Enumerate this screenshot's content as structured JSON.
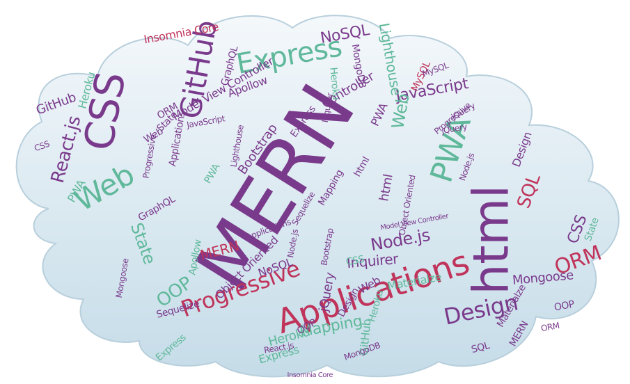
{
  "cloud": {
    "fill_top": "#f4f8fb",
    "fill_bottom": "#c5dce8",
    "outline": "#b8cfdc"
  },
  "palette": {
    "purple": "#7a3a8c",
    "teal": "#5fb89a",
    "crimson": "#c0335a",
    "gray": "#7d8a95"
  },
  "words": [
    {
      "text": "MERN",
      "color": "purple"
    },
    {
      "text": "html",
      "color": "purple"
    },
    {
      "text": "Applications",
      "color": "crimson"
    },
    {
      "text": "CSS",
      "color": "purple"
    },
    {
      "text": "GitHub",
      "color": "purple"
    },
    {
      "text": "Express",
      "color": "teal"
    },
    {
      "text": "Web",
      "color": "teal"
    },
    {
      "text": "PWA",
      "color": "teal"
    },
    {
      "text": "React.js",
      "color": "purple"
    },
    {
      "text": "Progressive",
      "color": "crimson"
    },
    {
      "text": "Design",
      "color": "purple"
    },
    {
      "text": "ORM",
      "color": "crimson"
    },
    {
      "text": "SQL",
      "color": "crimson"
    },
    {
      "text": "Node.js",
      "color": "purple"
    },
    {
      "text": "JavaScript",
      "color": "purple"
    },
    {
      "text": "NoSQL",
      "color": "purple"
    },
    {
      "text": "Lighthouse",
      "color": "teal"
    },
    {
      "text": "Model View Controller",
      "color": "purple"
    },
    {
      "text": "Bootstrap",
      "color": "purple"
    },
    {
      "text": "OOP",
      "color": "teal"
    },
    {
      "text": "State",
      "color": "teal"
    },
    {
      "text": "Heroku",
      "color": "teal"
    },
    {
      "text": "Apollow",
      "color": "purple"
    },
    {
      "text": "GraphQL",
      "color": "purple"
    },
    {
      "text": "Mapping",
      "color": "teal"
    },
    {
      "text": "MERN",
      "color": "crimson"
    },
    {
      "text": "jQuery",
      "color": "purple"
    },
    {
      "text": "Inquirer",
      "color": "purple"
    },
    {
      "text": "Object Oriented",
      "color": "purple"
    },
    {
      "text": "Materialze",
      "color": "teal"
    },
    {
      "text": "Mongoose",
      "color": "purple"
    },
    {
      "text": "Sequelize",
      "color": "purple"
    },
    {
      "text": "MongoDB",
      "color": "purple"
    },
    {
      "text": "Insomnia Core",
      "color": "crimson"
    },
    {
      "text": "MySQL",
      "color": "crimson"
    },
    {
      "text": "Controller",
      "color": "purple"
    },
    {
      "text": "Heroku",
      "color": "teal"
    },
    {
      "text": "GitHub",
      "color": "purple"
    },
    {
      "text": "CSS",
      "color": "purple"
    },
    {
      "text": "Web",
      "color": "teal"
    },
    {
      "text": "Design",
      "color": "purple"
    },
    {
      "text": "html",
      "color": "purple"
    },
    {
      "text": "Express",
      "color": "teal"
    },
    {
      "text": "PWA",
      "color": "teal"
    },
    {
      "text": "Applications",
      "color": "purple"
    },
    {
      "text": "State",
      "color": "purple"
    },
    {
      "text": "Progressive",
      "color": "purple"
    },
    {
      "text": "OOP",
      "color": "purple"
    },
    {
      "text": "React.js",
      "color": "purple"
    },
    {
      "text": "Heroku",
      "color": "teal"
    },
    {
      "text": "CSS",
      "color": "teal"
    },
    {
      "text": "State",
      "color": "teal"
    },
    {
      "text": "ORM",
      "color": "purple"
    },
    {
      "text": "NoSQL",
      "color": "purple"
    },
    {
      "text": "Mapping",
      "color": "purple"
    },
    {
      "text": "Express",
      "color": "teal"
    },
    {
      "text": "Web",
      "color": "purple"
    },
    {
      "text": "SQL",
      "color": "purple"
    },
    {
      "text": "jQuery",
      "color": "purple"
    },
    {
      "text": "Node.js",
      "color": "purple"
    },
    {
      "text": "PWA",
      "color": "purple"
    },
    {
      "text": "Materialze",
      "color": "purple"
    },
    {
      "text": "Mongoose",
      "color": "purple"
    },
    {
      "text": "Heroku",
      "color": "teal"
    },
    {
      "text": "html",
      "color": "purple"
    },
    {
      "text": "Bootstrap",
      "color": "purple"
    },
    {
      "text": "Sequelize",
      "color": "purple"
    },
    {
      "text": "Object Oriented",
      "color": "purple"
    },
    {
      "text": "GraphQL",
      "color": "purple"
    },
    {
      "text": "MERN",
      "color": "purple"
    },
    {
      "text": "Design",
      "color": "purple"
    },
    {
      "text": "Applications",
      "color": "purple"
    },
    {
      "text": "OOP",
      "color": "purple"
    },
    {
      "text": "Web",
      "color": "purple"
    },
    {
      "text": "Lighthouse",
      "color": "purple"
    },
    {
      "text": "ORM",
      "color": "purple"
    },
    {
      "text": "Express",
      "color": "purple"
    },
    {
      "text": "GitHub",
      "color": "teal"
    },
    {
      "text": "MySQL",
      "color": "purple"
    },
    {
      "text": "JavaScript",
      "color": "purple"
    },
    {
      "text": "Inquirer",
      "color": "purple"
    },
    {
      "text": "Apollow",
      "color": "teal"
    },
    {
      "text": "MongoDB",
      "color": "purple"
    },
    {
      "text": "Insomnia Core",
      "color": "purple"
    },
    {
      "text": "Model View Controller",
      "color": "purple"
    },
    {
      "text": "Progressive",
      "color": "purple"
    },
    {
      "text": "PWA",
      "color": "teal"
    },
    {
      "text": "jQuery",
      "color": "purple"
    },
    {
      "text": "CSS",
      "color": "purple"
    },
    {
      "text": "Node.js",
      "color": "purple"
    }
  ]
}
